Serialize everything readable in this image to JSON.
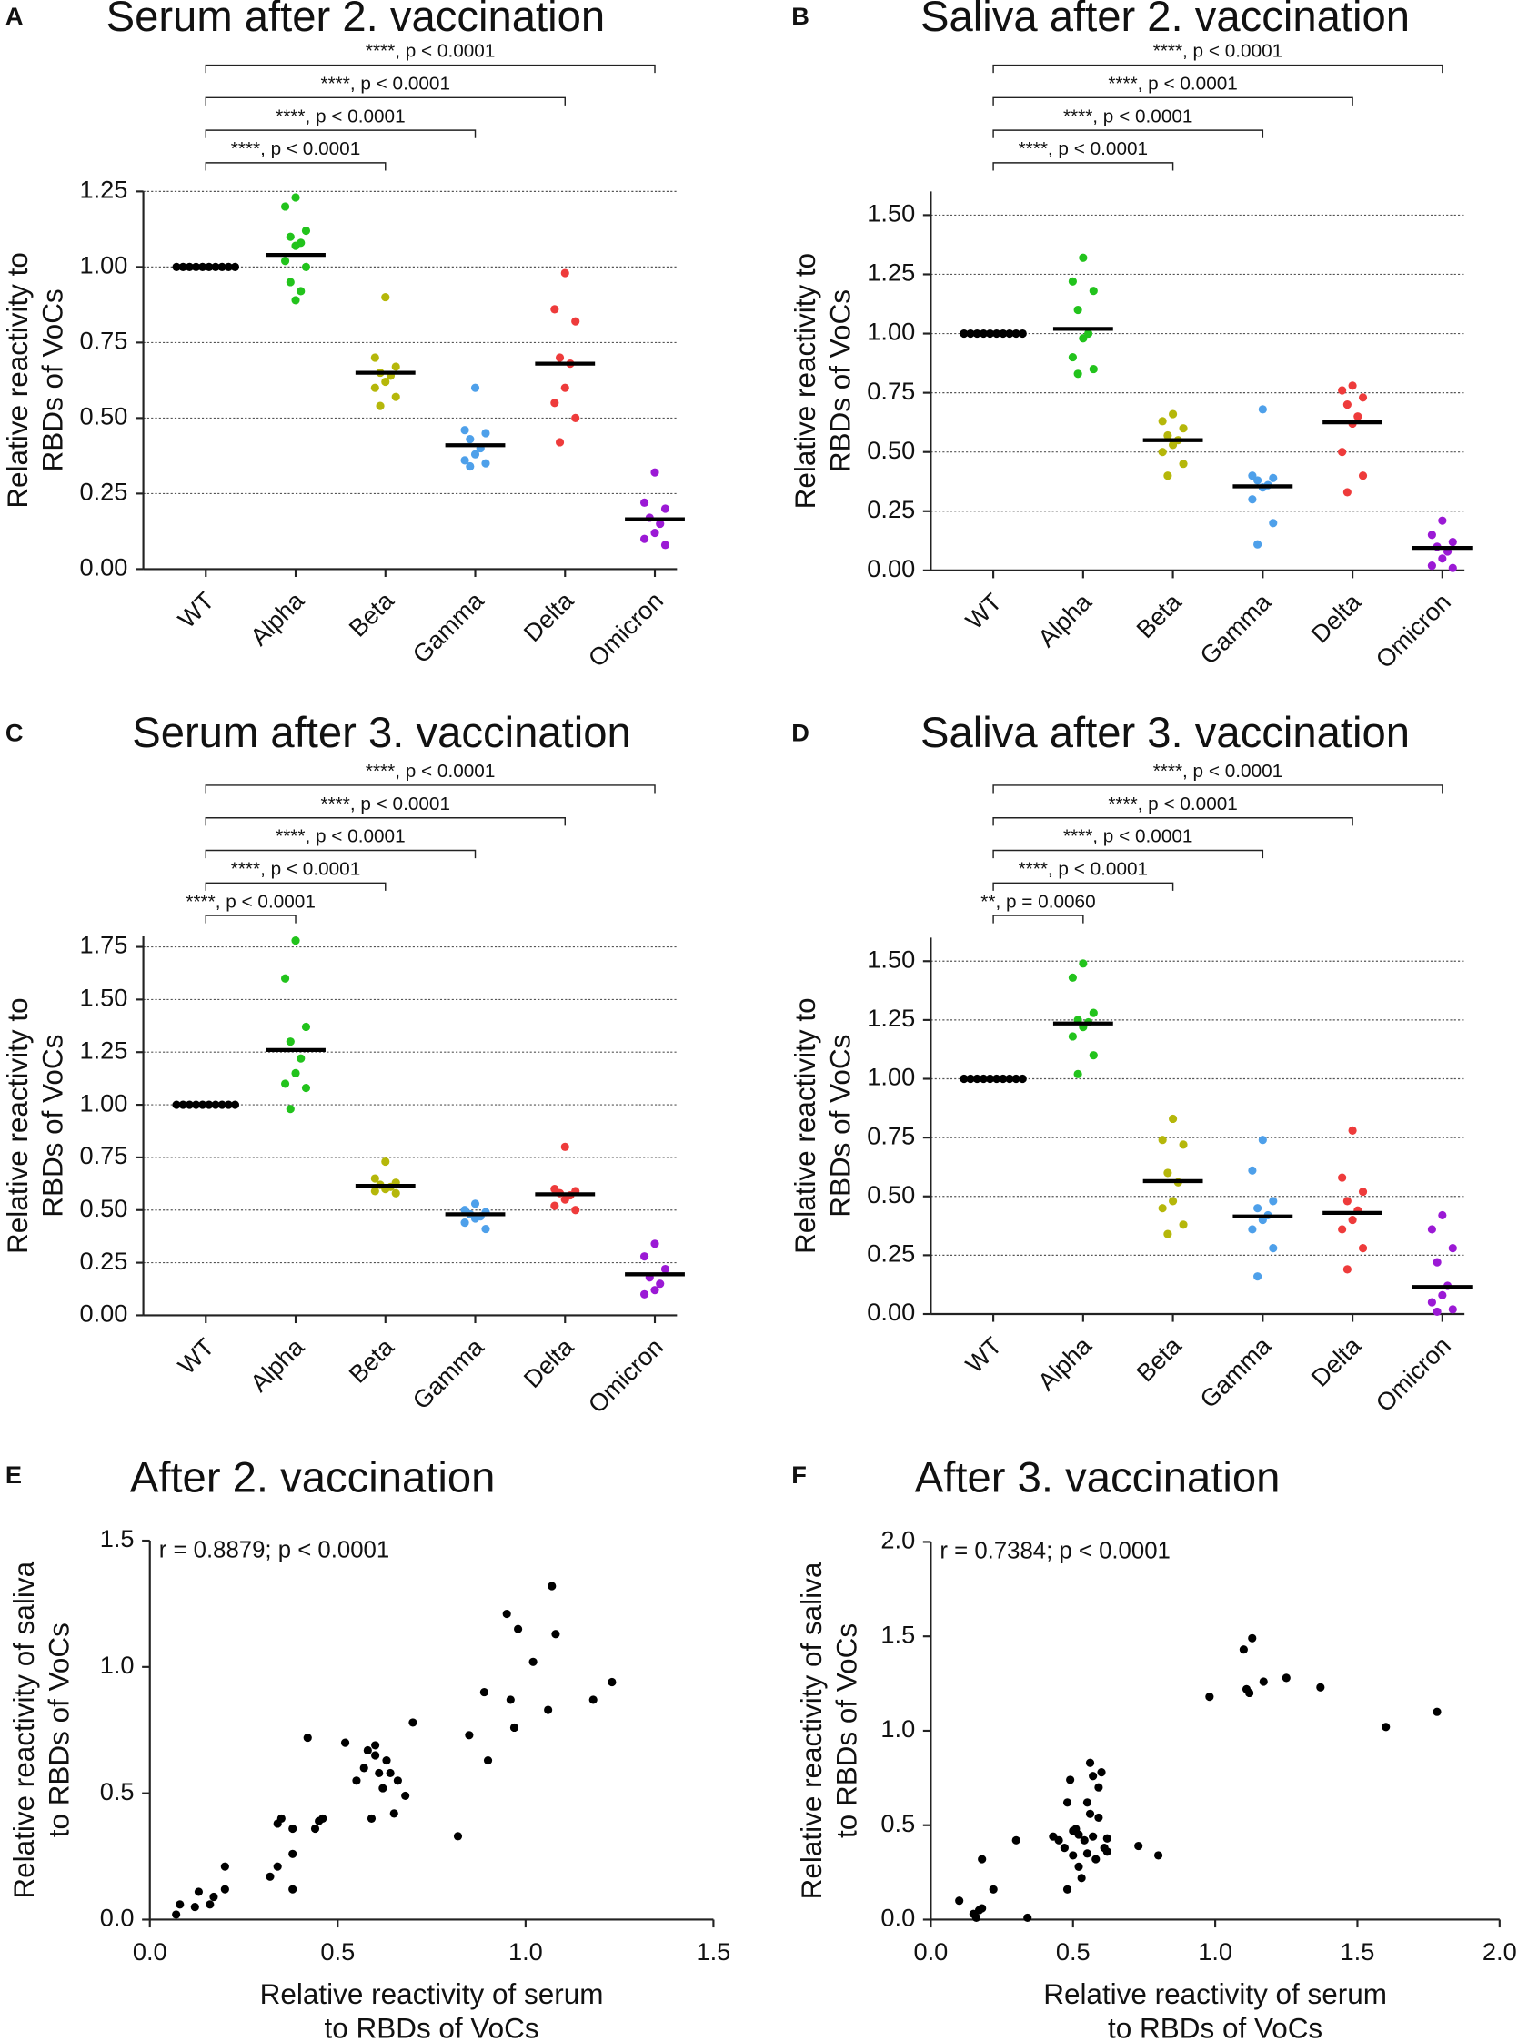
{
  "chart_data": [
    {
      "type": "strip",
      "panel_label": "A",
      "title": "Serum after 2. vaccination",
      "ylabel": [
        "Relative reactivity to",
        "RBDs of VoCs"
      ],
      "categories": [
        "WT",
        "Alpha",
        "Beta",
        "Gamma",
        "Delta",
        "Omicron"
      ],
      "colors": [
        "#000000",
        "#22c31c",
        "#b5b70a",
        "#4ea0ea",
        "#ee3b3b",
        "#9b19d5"
      ],
      "points": [
        [
          1,
          1,
          1,
          1,
          1,
          1,
          1,
          1,
          1,
          1
        ],
        [
          1.23,
          1.2,
          1.12,
          1.1,
          1.08,
          1.07,
          1.02,
          1.0,
          0.95,
          0.92,
          0.89
        ],
        [
          0.9,
          0.7,
          0.67,
          0.65,
          0.64,
          0.62,
          0.6,
          0.57,
          0.54
        ],
        [
          0.6,
          0.46,
          0.45,
          0.43,
          0.4,
          0.38,
          0.36,
          0.35,
          0.34
        ],
        [
          0.98,
          0.86,
          0.82,
          0.7,
          0.68,
          0.6,
          0.55,
          0.5,
          0.42
        ],
        [
          0.32,
          0.22,
          0.2,
          0.17,
          0.15,
          0.12,
          0.1,
          0.08
        ]
      ],
      "medians": [
        1,
        1.04,
        0.65,
        0.41,
        0.68,
        0.165
      ],
      "ylim": [
        0,
        1.25
      ],
      "yticks": [
        {
          "value": 0,
          "label": "0.00"
        },
        {
          "value": 0.25,
          "label": "0.25"
        },
        {
          "value": 0.5,
          "label": "0.50"
        },
        {
          "value": 0.75,
          "label": "0.75"
        },
        {
          "value": 1,
          "label": "1.00"
        },
        {
          "value": 1.25,
          "label": "1.25"
        }
      ],
      "grid": true,
      "comparisons": [
        {
          "from": "WT",
          "to": "Beta",
          "label": "****, p < 0.0001"
        },
        {
          "from": "WT",
          "to": "Gamma",
          "label": "****, p < 0.0001"
        },
        {
          "from": "WT",
          "to": "Delta",
          "label": "****, p < 0.0001"
        },
        {
          "from": "WT",
          "to": "Omicron",
          "label": "****, p < 0.0001"
        }
      ]
    },
    {
      "type": "strip",
      "panel_label": "B",
      "title": "Saliva after 2. vaccination",
      "ylabel": [
        "Relative reactivity to",
        "RBDs of VoCs"
      ],
      "categories": [
        "WT",
        "Alpha",
        "Beta",
        "Gamma",
        "Delta",
        "Omicron"
      ],
      "colors": [
        "#000000",
        "#22c31c",
        "#b5b70a",
        "#4ea0ea",
        "#ee3b3b",
        "#9b19d5"
      ],
      "points": [
        [
          1,
          1,
          1,
          1,
          1,
          1,
          1,
          1,
          1,
          1
        ],
        [
          1.32,
          1.22,
          1.18,
          1.1,
          1.0,
          0.98,
          0.9,
          0.85,
          0.83
        ],
        [
          0.66,
          0.63,
          0.6,
          0.57,
          0.55,
          0.53,
          0.5,
          0.45,
          0.4
        ],
        [
          0.68,
          0.4,
          0.39,
          0.38,
          0.36,
          0.35,
          0.3,
          0.2,
          0.11
        ],
        [
          0.78,
          0.76,
          0.73,
          0.7,
          0.65,
          0.62,
          0.5,
          0.4,
          0.33
        ],
        [
          0.21,
          0.15,
          0.12,
          0.1,
          0.08,
          0.05,
          0.02,
          0.01
        ]
      ],
      "medians": [
        1,
        1.02,
        0.55,
        0.355,
        0.625,
        0.095
      ],
      "ylim": [
        0,
        1.6
      ],
      "yticks": [
        {
          "value": 0,
          "label": "0.00"
        },
        {
          "value": 0.25,
          "label": "0.25"
        },
        {
          "value": 0.5,
          "label": "0.50"
        },
        {
          "value": 0.75,
          "label": "0.75"
        },
        {
          "value": 1,
          "label": "1.00"
        },
        {
          "value": 1.25,
          "label": "1.25"
        },
        {
          "value": 1.5,
          "label": "1.50"
        }
      ],
      "grid": true,
      "comparisons": [
        {
          "from": "WT",
          "to": "Beta",
          "label": "****, p < 0.0001"
        },
        {
          "from": "WT",
          "to": "Gamma",
          "label": "****, p < 0.0001"
        },
        {
          "from": "WT",
          "to": "Delta",
          "label": "****, p < 0.0001"
        },
        {
          "from": "WT",
          "to": "Omicron",
          "label": "****, p < 0.0001"
        }
      ]
    },
    {
      "type": "strip",
      "panel_label": "C",
      "title": "Serum after 3. vaccination",
      "ylabel": [
        "Relative reactivity to",
        "RBDs of VoCs"
      ],
      "categories": [
        "WT",
        "Alpha",
        "Beta",
        "Gamma",
        "Delta",
        "Omicron"
      ],
      "colors": [
        "#000000",
        "#22c31c",
        "#b5b70a",
        "#4ea0ea",
        "#ee3b3b",
        "#9b19d5"
      ],
      "points": [
        [
          1,
          1,
          1,
          1,
          1,
          1,
          1,
          1,
          1,
          1
        ],
        [
          1.78,
          1.6,
          1.37,
          1.3,
          1.22,
          1.15,
          1.1,
          1.08,
          0.98
        ],
        [
          0.73,
          0.65,
          0.63,
          0.62,
          0.61,
          0.6,
          0.59,
          0.58
        ],
        [
          0.53,
          0.5,
          0.49,
          0.48,
          0.47,
          0.46,
          0.44,
          0.41
        ],
        [
          0.8,
          0.6,
          0.59,
          0.58,
          0.57,
          0.55,
          0.52,
          0.5
        ],
        [
          0.34,
          0.28,
          0.22,
          0.18,
          0.15,
          0.12,
          0.1
        ]
      ],
      "medians": [
        1,
        1.26,
        0.615,
        0.48,
        0.575,
        0.195
      ],
      "ylim": [
        0,
        1.8
      ],
      "yticks": [
        {
          "value": 0,
          "label": "0.00"
        },
        {
          "value": 0.25,
          "label": "0.25"
        },
        {
          "value": 0.5,
          "label": "0.50"
        },
        {
          "value": 0.75,
          "label": "0.75"
        },
        {
          "value": 1,
          "label": "1.00"
        },
        {
          "value": 1.25,
          "label": "1.25"
        },
        {
          "value": 1.5,
          "label": "1.50"
        },
        {
          "value": 1.75,
          "label": "1.75"
        }
      ],
      "grid": true,
      "comparisons": [
        {
          "from": "WT",
          "to": "Alpha",
          "label": "****, p < 0.0001"
        },
        {
          "from": "WT",
          "to": "Beta",
          "label": "****, p < 0.0001"
        },
        {
          "from": "WT",
          "to": "Gamma",
          "label": "****, p < 0.0001"
        },
        {
          "from": "WT",
          "to": "Delta",
          "label": "****, p < 0.0001"
        },
        {
          "from": "WT",
          "to": "Omicron",
          "label": "****, p < 0.0001"
        }
      ]
    },
    {
      "type": "strip",
      "panel_label": "D",
      "title": "Saliva after 3. vaccination",
      "ylabel": [
        "Relative reactivity to",
        "RBDs of VoCs"
      ],
      "categories": [
        "WT",
        "Alpha",
        "Beta",
        "Gamma",
        "Delta",
        "Omicron"
      ],
      "colors": [
        "#000000",
        "#22c31c",
        "#b5b70a",
        "#4ea0ea",
        "#ee3b3b",
        "#9b19d5"
      ],
      "points": [
        [
          1,
          1,
          1,
          1,
          1,
          1,
          1,
          1,
          1,
          1
        ],
        [
          1.49,
          1.43,
          1.28,
          1.25,
          1.24,
          1.22,
          1.18,
          1.1,
          1.02
        ],
        [
          0.83,
          0.74,
          0.72,
          0.6,
          0.56,
          0.48,
          0.45,
          0.38,
          0.34
        ],
        [
          0.74,
          0.61,
          0.48,
          0.45,
          0.42,
          0.4,
          0.36,
          0.28,
          0.16
        ],
        [
          0.78,
          0.58,
          0.52,
          0.48,
          0.44,
          0.4,
          0.36,
          0.28,
          0.19
        ],
        [
          0.42,
          0.36,
          0.28,
          0.22,
          0.12,
          0.08,
          0.05,
          0.02,
          0.01
        ]
      ],
      "medians": [
        1,
        1.235,
        0.565,
        0.415,
        0.43,
        0.115
      ],
      "ylim": [
        0,
        1.6
      ],
      "yticks": [
        {
          "value": 0,
          "label": "0.00"
        },
        {
          "value": 0.25,
          "label": "0.25"
        },
        {
          "value": 0.5,
          "label": "0.50"
        },
        {
          "value": 0.75,
          "label": "0.75"
        },
        {
          "value": 1,
          "label": "1.00"
        },
        {
          "value": 1.25,
          "label": "1.25"
        },
        {
          "value": 1.5,
          "label": "1.50"
        }
      ],
      "grid": true,
      "comparisons": [
        {
          "from": "WT",
          "to": "Alpha",
          "label": "**, p = 0.0060"
        },
        {
          "from": "WT",
          "to": "Beta",
          "label": "****, p < 0.0001"
        },
        {
          "from": "WT",
          "to": "Gamma",
          "label": "****, p < 0.0001"
        },
        {
          "from": "WT",
          "to": "Delta",
          "label": "****, p < 0.0001"
        },
        {
          "from": "WT",
          "to": "Omicron",
          "label": "****, p < 0.0001"
        }
      ]
    },
    {
      "type": "scatter",
      "panel_label": "E",
      "title": "After 2. vaccination",
      "annotation": "r = 0.8879; p < 0.0001",
      "xlabel": [
        "Relative reactivity of serum",
        "to RBDs of VoCs"
      ],
      "ylabel": [
        "Relative reactivity of saliva",
        "to RBDs of VoCs"
      ],
      "color": "#000000",
      "x": [
        0.07,
        0.08,
        0.12,
        0.13,
        0.16,
        0.17,
        0.2,
        0.2,
        0.32,
        0.34,
        0.34,
        0.35,
        0.38,
        0.38,
        0.38,
        0.42,
        0.44,
        0.45,
        0.46,
        0.52,
        0.55,
        0.57,
        0.58,
        0.59,
        0.6,
        0.6,
        0.61,
        0.62,
        0.63,
        0.64,
        0.65,
        0.66,
        0.68,
        0.7,
        0.82,
        0.85,
        0.89,
        0.9,
        0.95,
        0.96,
        0.97,
        0.98,
        1.02,
        1.06,
        1.07,
        1.08,
        1.18,
        1.23
      ],
      "y": [
        0.02,
        0.06,
        0.05,
        0.11,
        0.06,
        0.09,
        0.12,
        0.21,
        0.17,
        0.21,
        0.38,
        0.4,
        0.36,
        0.26,
        0.12,
        0.72,
        0.36,
        0.39,
        0.4,
        0.7,
        0.55,
        0.6,
        0.67,
        0.4,
        0.69,
        0.65,
        0.58,
        0.52,
        0.63,
        0.58,
        0.42,
        0.55,
        0.49,
        0.78,
        0.33,
        0.73,
        0.9,
        0.63,
        1.21,
        0.87,
        0.76,
        1.15,
        1.02,
        0.83,
        1.32,
        1.13,
        0.87,
        0.94
      ],
      "xlim": [
        0,
        1.5
      ],
      "ylim": [
        0,
        1.5
      ],
      "xticks": [
        {
          "value": 0,
          "label": "0.0"
        },
        {
          "value": 0.5,
          "label": "0.5"
        },
        {
          "value": 1,
          "label": "1.0"
        },
        {
          "value": 1.5,
          "label": "1.5"
        }
      ],
      "yticks": [
        {
          "value": 0,
          "label": "0.0"
        },
        {
          "value": 0.5,
          "label": "0.5"
        },
        {
          "value": 1,
          "label": "1.0"
        },
        {
          "value": 1.5,
          "label": "1.5"
        }
      ]
    },
    {
      "type": "scatter",
      "panel_label": "F",
      "title": "After 3. vaccination",
      "annotation": "r = 0.7384; p < 0.0001",
      "xlabel": [
        "Relative reactivity of serum",
        "to RBDs of VoCs"
      ],
      "ylabel": [
        "Relative reactivity of saliva",
        "to RBDs of VoCs"
      ],
      "color": "#000000",
      "x": [
        0.1,
        0.15,
        0.16,
        0.17,
        0.18,
        0.18,
        0.22,
        0.3,
        0.34,
        0.43,
        0.45,
        0.47,
        0.48,
        0.48,
        0.49,
        0.5,
        0.5,
        0.51,
        0.52,
        0.52,
        0.53,
        0.54,
        0.55,
        0.55,
        0.56,
        0.56,
        0.57,
        0.57,
        0.58,
        0.59,
        0.59,
        0.6,
        0.61,
        0.62,
        0.62,
        0.73,
        0.8,
        0.98,
        1.1,
        1.11,
        1.12,
        1.13,
        1.17,
        1.25,
        1.37,
        1.6,
        1.78
      ],
      "y": [
        0.1,
        0.03,
        0.01,
        0.05,
        0.06,
        0.32,
        0.16,
        0.42,
        0.01,
        0.44,
        0.42,
        0.38,
        0.62,
        0.16,
        0.74,
        0.47,
        0.34,
        0.48,
        0.45,
        0.28,
        0.22,
        0.42,
        0.62,
        0.35,
        0.83,
        0.56,
        0.76,
        0.44,
        0.32,
        0.7,
        0.54,
        0.78,
        0.38,
        0.43,
        0.36,
        0.39,
        0.34,
        1.18,
        1.43,
        1.22,
        1.2,
        1.49,
        1.26,
        1.28,
        1.23,
        1.02,
        1.1
      ],
      "xlim": [
        0,
        2
      ],
      "ylim": [
        0,
        2
      ],
      "xticks": [
        {
          "value": 0,
          "label": "0.0"
        },
        {
          "value": 0.5,
          "label": "0.5"
        },
        {
          "value": 1,
          "label": "1.0"
        },
        {
          "value": 1.5,
          "label": "1.5"
        },
        {
          "value": 2,
          "label": "2.0"
        }
      ],
      "yticks": [
        {
          "value": 0,
          "label": "0.0"
        },
        {
          "value": 0.5,
          "label": "0.5"
        },
        {
          "value": 1,
          "label": "1.0"
        },
        {
          "value": 1.5,
          "label": "1.5"
        },
        {
          "value": 2,
          "label": "2.0"
        }
      ]
    }
  ]
}
